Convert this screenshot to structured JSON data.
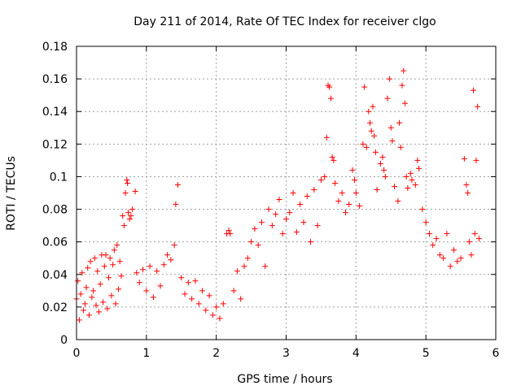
{
  "chart_data": {
    "type": "scatter",
    "title": "Day 211 of 2014, Rate Of TEC Index for receiver clgo",
    "xlabel": "GPS time / hours",
    "ylabel": "ROTI / TECUs",
    "xlim": [
      0,
      6
    ],
    "ylim": [
      0,
      0.18
    ],
    "xticks": [
      0,
      1,
      2,
      3,
      4,
      5,
      6
    ],
    "xtick_labels": [
      "0",
      "1",
      "2",
      "3",
      "4",
      "5",
      "6"
    ],
    "yticks": [
      0,
      0.02,
      0.04,
      0.06,
      0.08,
      0.1,
      0.12,
      0.14,
      0.16,
      0.18
    ],
    "ytick_labels": [
      "0",
      "0.02",
      "0.04",
      "0.06",
      "0.08",
      "0.1",
      "0.12",
      "0.14",
      "0.16",
      "0.18"
    ],
    "grid": true,
    "marker": "+",
    "color": "#ff0000",
    "series": [
      {
        "name": "ROTI",
        "points": [
          [
            0.0,
            0.025
          ],
          [
            0.02,
            0.036
          ],
          [
            0.04,
            0.012
          ],
          [
            0.06,
            0.028
          ],
          [
            0.08,
            0.041
          ],
          [
            0.1,
            0.018
          ],
          [
            0.12,
            0.022
          ],
          [
            0.14,
            0.032
          ],
          [
            0.16,
            0.044
          ],
          [
            0.18,
            0.015
          ],
          [
            0.2,
            0.048
          ],
          [
            0.22,
            0.026
          ],
          [
            0.24,
            0.03
          ],
          [
            0.26,
            0.05
          ],
          [
            0.28,
            0.021
          ],
          [
            0.3,
            0.042
          ],
          [
            0.32,
            0.017
          ],
          [
            0.34,
            0.034
          ],
          [
            0.36,
            0.052
          ],
          [
            0.38,
            0.023
          ],
          [
            0.4,
            0.045
          ],
          [
            0.42,
            0.052
          ],
          [
            0.44,
            0.019
          ],
          [
            0.46,
            0.038
          ],
          [
            0.48,
            0.05
          ],
          [
            0.5,
            0.027
          ],
          [
            0.52,
            0.046
          ],
          [
            0.54,
            0.055
          ],
          [
            0.56,
            0.022
          ],
          [
            0.58,
            0.058
          ],
          [
            0.6,
            0.031
          ],
          [
            0.62,
            0.048
          ],
          [
            0.64,
            0.039
          ],
          [
            0.66,
            0.076
          ],
          [
            0.68,
            0.07
          ],
          [
            0.7,
            0.09
          ],
          [
            0.72,
            0.098
          ],
          [
            0.73,
            0.096
          ],
          [
            0.74,
            0.078
          ],
          [
            0.76,
            0.074
          ],
          [
            0.78,
            0.076
          ],
          [
            0.8,
            0.08
          ],
          [
            0.84,
            0.091
          ],
          [
            0.86,
            0.041
          ],
          [
            0.9,
            0.035
          ],
          [
            0.95,
            0.043
          ],
          [
            1.0,
            0.03
          ],
          [
            1.05,
            0.045
          ],
          [
            1.1,
            0.026
          ],
          [
            1.15,
            0.042
          ],
          [
            1.2,
            0.033
          ],
          [
            1.25,
            0.046
          ],
          [
            1.3,
            0.052
          ],
          [
            1.35,
            0.049
          ],
          [
            1.4,
            0.058
          ],
          [
            1.42,
            0.083
          ],
          [
            1.45,
            0.095
          ],
          [
            1.5,
            0.038
          ],
          [
            1.55,
            0.028
          ],
          [
            1.6,
            0.035
          ],
          [
            1.65,
            0.025
          ],
          [
            1.7,
            0.036
          ],
          [
            1.75,
            0.022
          ],
          [
            1.8,
            0.03
          ],
          [
            1.85,
            0.018
          ],
          [
            1.9,
            0.027
          ],
          [
            1.95,
            0.015
          ],
          [
            2.0,
            0.02
          ],
          [
            2.05,
            0.013
          ],
          [
            2.1,
            0.022
          ],
          [
            2.15,
            0.065
          ],
          [
            2.18,
            0.067
          ],
          [
            2.2,
            0.065
          ],
          [
            2.25,
            0.03
          ],
          [
            2.3,
            0.042
          ],
          [
            2.35,
            0.025
          ],
          [
            2.4,
            0.045
          ],
          [
            2.45,
            0.05
          ],
          [
            2.5,
            0.06
          ],
          [
            2.55,
            0.068
          ],
          [
            2.6,
            0.058
          ],
          [
            2.65,
            0.072
          ],
          [
            2.7,
            0.045
          ],
          [
            2.75,
            0.08
          ],
          [
            2.8,
            0.07
          ],
          [
            2.85,
            0.077
          ],
          [
            2.9,
            0.086
          ],
          [
            2.95,
            0.065
          ],
          [
            3.0,
            0.074
          ],
          [
            3.05,
            0.078
          ],
          [
            3.1,
            0.09
          ],
          [
            3.15,
            0.066
          ],
          [
            3.2,
            0.083
          ],
          [
            3.25,
            0.072
          ],
          [
            3.3,
            0.088
          ],
          [
            3.35,
            0.06
          ],
          [
            3.4,
            0.092
          ],
          [
            3.45,
            0.07
          ],
          [
            3.5,
            0.098
          ],
          [
            3.55,
            0.1
          ],
          [
            3.58,
            0.124
          ],
          [
            3.6,
            0.156
          ],
          [
            3.62,
            0.155
          ],
          [
            3.64,
            0.148
          ],
          [
            3.66,
            0.112
          ],
          [
            3.68,
            0.11
          ],
          [
            3.7,
            0.096
          ],
          [
            3.75,
            0.085
          ],
          [
            3.8,
            0.09
          ],
          [
            3.85,
            0.078
          ],
          [
            3.9,
            0.083
          ],
          [
            3.95,
            0.104
          ],
          [
            3.98,
            0.098
          ],
          [
            4.0,
            0.09
          ],
          [
            4.05,
            0.082
          ],
          [
            4.1,
            0.12
          ],
          [
            4.12,
            0.155
          ],
          [
            4.15,
            0.118
          ],
          [
            4.18,
            0.14
          ],
          [
            4.2,
            0.133
          ],
          [
            4.22,
            0.128
          ],
          [
            4.24,
            0.143
          ],
          [
            4.26,
            0.125
          ],
          [
            4.28,
            0.115
          ],
          [
            4.3,
            0.092
          ],
          [
            4.35,
            0.108
          ],
          [
            4.38,
            0.112
          ],
          [
            4.4,
            0.104
          ],
          [
            4.42,
            0.1
          ],
          [
            4.45,
            0.148
          ],
          [
            4.48,
            0.16
          ],
          [
            4.5,
            0.13
          ],
          [
            4.52,
            0.122
          ],
          [
            4.55,
            0.094
          ],
          [
            4.6,
            0.085
          ],
          [
            4.62,
            0.133
          ],
          [
            4.64,
            0.118
          ],
          [
            4.66,
            0.156
          ],
          [
            4.68,
            0.165
          ],
          [
            4.7,
            0.145
          ],
          [
            4.72,
            0.1
          ],
          [
            4.74,
            0.093
          ],
          [
            4.78,
            0.102
          ],
          [
            4.8,
            0.098
          ],
          [
            4.85,
            0.095
          ],
          [
            4.88,
            0.11
          ],
          [
            4.9,
            0.105
          ],
          [
            4.95,
            0.08
          ],
          [
            5.0,
            0.072
          ],
          [
            5.05,
            0.065
          ],
          [
            5.1,
            0.058
          ],
          [
            5.15,
            0.062
          ],
          [
            5.2,
            0.052
          ],
          [
            5.25,
            0.05
          ],
          [
            5.3,
            0.065
          ],
          [
            5.35,
            0.045
          ],
          [
            5.4,
            0.055
          ],
          [
            5.45,
            0.048
          ],
          [
            5.5,
            0.05
          ],
          [
            5.55,
            0.111
          ],
          [
            5.58,
            0.095
          ],
          [
            5.6,
            0.09
          ],
          [
            5.62,
            0.06
          ],
          [
            5.65,
            0.052
          ],
          [
            5.68,
            0.153
          ],
          [
            5.7,
            0.065
          ],
          [
            5.72,
            0.11
          ],
          [
            5.74,
            0.143
          ],
          [
            5.76,
            0.062
          ]
        ]
      }
    ]
  }
}
